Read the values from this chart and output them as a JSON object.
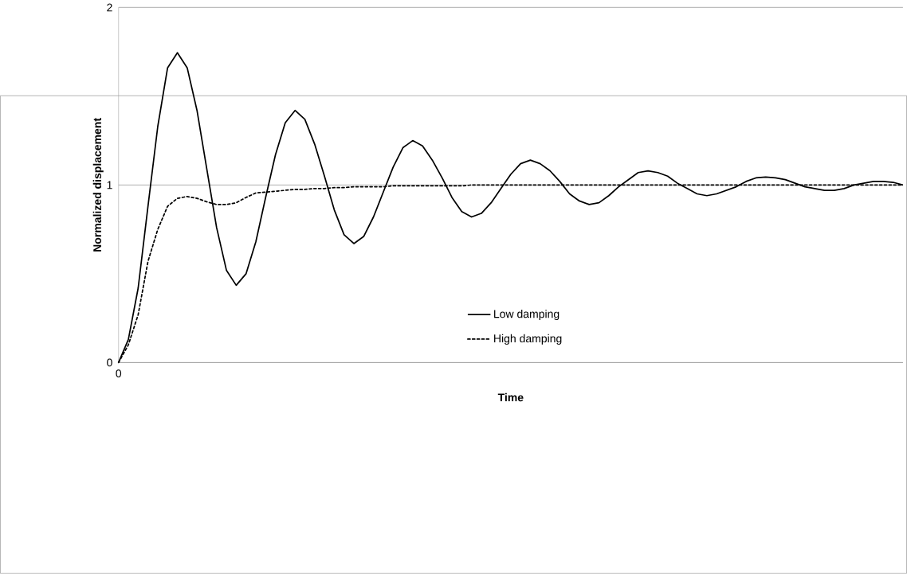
{
  "chart_data": {
    "type": "line",
    "xlabel": "Time",
    "ylabel": "Normalized displacement",
    "categories": [
      "0",
      null,
      null,
      null,
      null,
      null,
      null,
      null,
      null,
      null,
      null,
      null,
      null,
      null,
      null,
      null,
      null,
      null,
      null,
      null,
      null,
      null,
      null,
      null,
      null,
      null,
      null,
      null,
      null,
      null,
      null,
      null,
      null,
      null,
      null,
      null,
      null,
      null,
      null,
      null,
      null,
      null,
      null,
      null,
      null,
      null,
      null,
      null,
      null,
      null,
      null,
      null,
      null,
      null,
      null,
      null,
      null,
      null,
      null,
      null,
      null,
      null,
      null,
      null,
      null,
      null,
      null,
      null,
      null,
      null,
      null,
      null,
      null,
      null,
      null,
      null,
      null,
      null,
      null,
      null,
      null
    ],
    "series": [
      {
        "name": "Low damping",
        "color": "#000000",
        "line_style": "solid",
        "values": [
          0,
          0.13,
          0.42,
          0.88,
          1.33,
          1.66,
          1.745,
          1.66,
          1.42,
          1.09,
          0.76,
          0.52,
          0.435,
          0.5,
          0.68,
          0.93,
          1.17,
          1.35,
          1.42,
          1.37,
          1.23,
          1.05,
          0.86,
          0.72,
          0.67,
          0.71,
          0.82,
          0.96,
          1.1,
          1.21,
          1.25,
          1.22,
          1.14,
          1.04,
          0.93,
          0.85,
          0.82,
          0.84,
          0.9,
          0.98,
          1.06,
          1.12,
          1.14,
          1.12,
          1.08,
          1.02,
          0.95,
          0.91,
          0.89,
          0.9,
          0.94,
          0.99,
          1.03,
          1.07,
          1.08,
          1.07,
          1.05,
          1.01,
          0.98,
          0.95,
          0.94,
          0.95,
          0.97,
          0.99,
          1.02,
          1.04,
          1.045,
          1.04,
          1.03,
          1.01,
          0.99,
          0.98,
          0.97,
          0.97,
          0.98,
          1.0,
          1.01,
          1.02,
          1.02,
          1.015,
          1.0
        ]
      },
      {
        "name": "High damping",
        "color": "#000000",
        "line_style": "dotted",
        "values": [
          0,
          0.1,
          0.27,
          0.57,
          0.75,
          0.88,
          0.925,
          0.935,
          0.925,
          0.905,
          0.89,
          0.89,
          0.9,
          0.93,
          0.955,
          0.96,
          0.965,
          0.97,
          0.975,
          0.975,
          0.98,
          0.98,
          0.985,
          0.985,
          0.99,
          0.99,
          0.99,
          0.99,
          0.995,
          0.995,
          0.995,
          0.995,
          0.995,
          0.995,
          0.995,
          0.995,
          1,
          1,
          1,
          1,
          1,
          1,
          1,
          1,
          1,
          1,
          1,
          1,
          1,
          1,
          1,
          1,
          1,
          1,
          1,
          1,
          1,
          1,
          1,
          1,
          1,
          1,
          1,
          1,
          1,
          1,
          1,
          1,
          1,
          1,
          1,
          1,
          1,
          1,
          1,
          1,
          1,
          1,
          1,
          1,
          1
        ]
      }
    ],
    "ylim": [
      0,
      2
    ],
    "yticks": [
      0,
      1,
      2
    ],
    "grid": "y",
    "legend": "bottom",
    "marker": "none"
  }
}
